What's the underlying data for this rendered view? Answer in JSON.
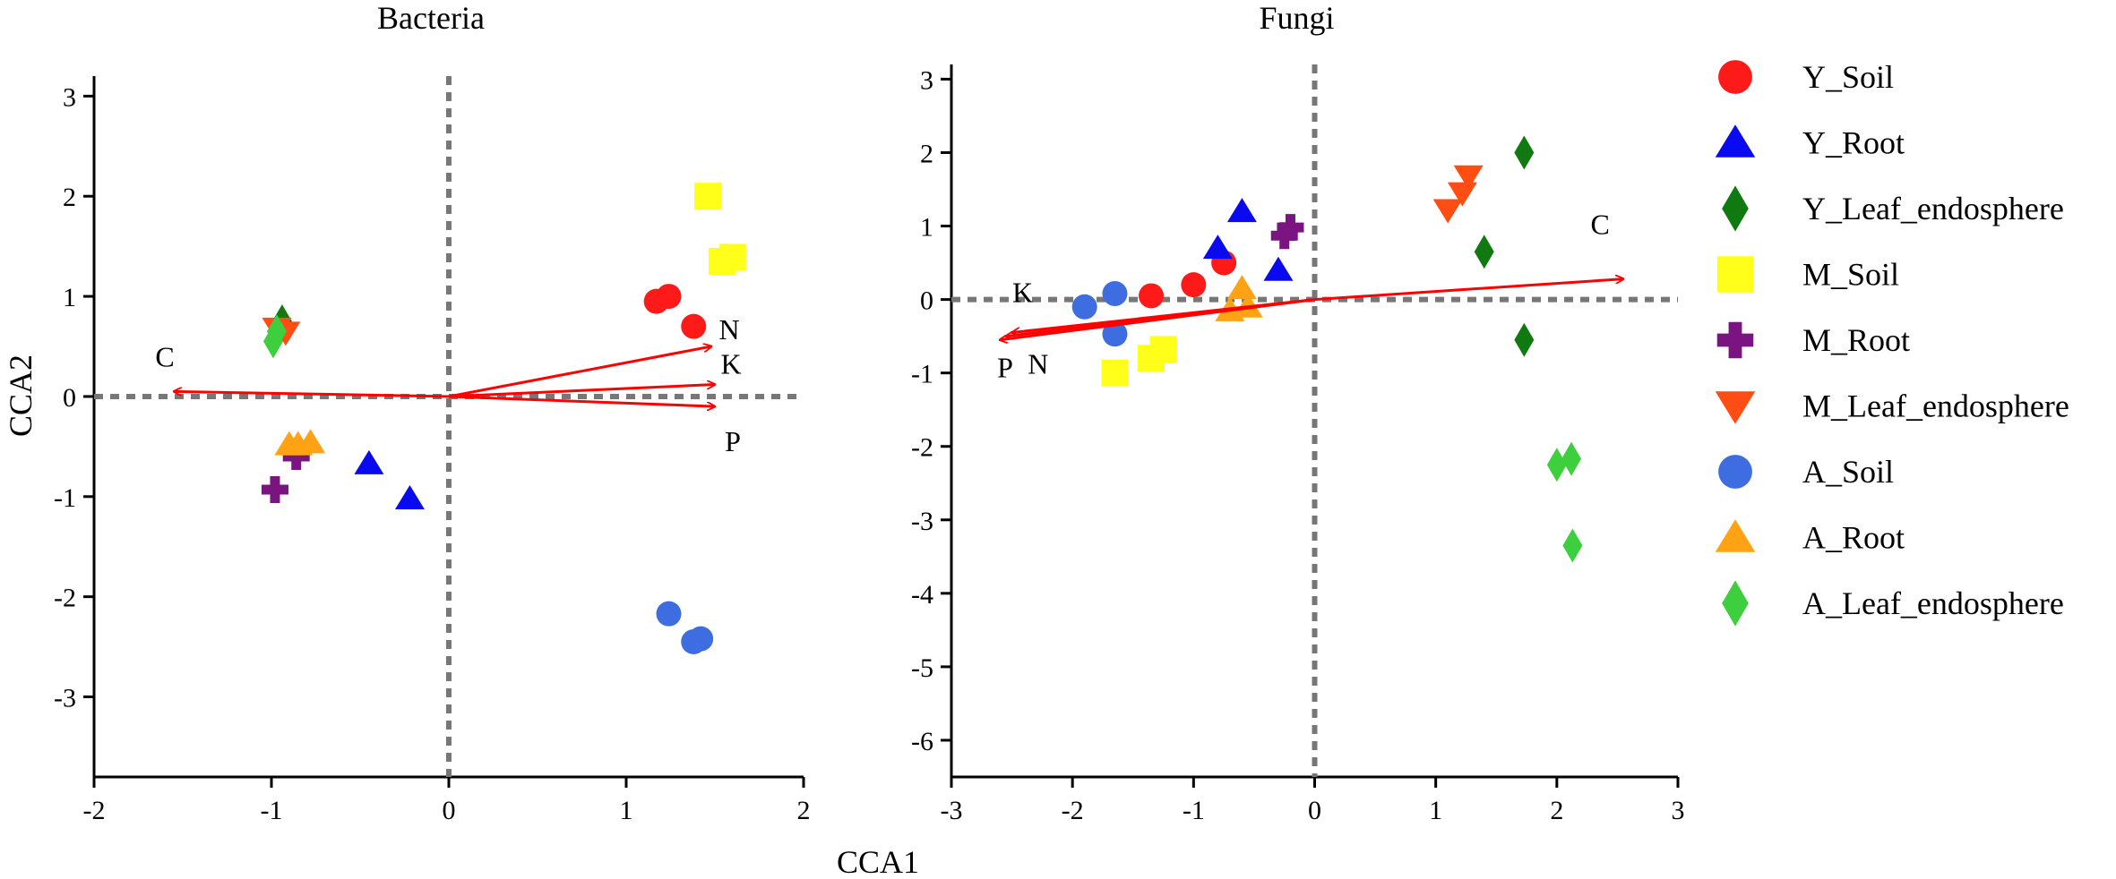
{
  "figure": {
    "shared_xlabel": "CCA1",
    "shared_ylabel": "CCA2"
  },
  "legend": [
    {
      "label": "Y_Soil",
      "marker": "circle",
      "color": "#ff1a1a"
    },
    {
      "label": "Y_Root",
      "marker": "triangle-up",
      "color": "#0a0af0"
    },
    {
      "label": "Y_Leaf_endosphere",
      "marker": "diamond",
      "color": "#107a10"
    },
    {
      "label": "M_Soil",
      "marker": "square",
      "color": "#ffff1a"
    },
    {
      "label": "M_Root",
      "marker": "plus",
      "color": "#7a1480"
    },
    {
      "label": "M_Leaf_endosphere",
      "marker": "triangle-down",
      "color": "#ff4d14"
    },
    {
      "label": "A_Soil",
      "marker": "circle",
      "color": "#3d6de0"
    },
    {
      "label": "A_Root",
      "marker": "triangle-up",
      "color": "#ffa214"
    },
    {
      "label": "A_Leaf_endosphere",
      "marker": "diamond",
      "color": "#3dcf3d"
    }
  ],
  "chart_data": [
    {
      "type": "scatter",
      "title": "Bacteria",
      "xlabel": "CCA1",
      "ylabel": "CCA2",
      "xlim": [
        -2,
        2
      ],
      "ylim": [
        -3.8,
        3.2
      ],
      "xticks": [
        -2,
        -1,
        0,
        1,
        2
      ],
      "yticks": [
        3,
        2,
        1,
        0,
        -1,
        -2,
        -3
      ],
      "vector_color": "#ff0000",
      "vectors": [
        {
          "label": "C",
          "x": -1.55,
          "y": 0.05
        },
        {
          "label": "N",
          "x": 1.48,
          "y": 0.5
        },
        {
          "label": "K",
          "x": 1.5,
          "y": 0.12
        },
        {
          "label": "P",
          "x": 1.5,
          "y": -0.1
        }
      ],
      "series": [
        {
          "name": "Y_Soil",
          "points": [
            [
              1.17,
              0.95
            ],
            [
              1.24,
              1.0
            ],
            [
              1.38,
              0.7
            ]
          ]
        },
        {
          "name": "Y_Root",
          "points": [
            [
              -0.45,
              -0.67
            ],
            [
              -0.22,
              -1.02
            ]
          ]
        },
        {
          "name": "Y_Leaf_endosphere",
          "points": [
            [
              -0.94,
              0.75
            ]
          ]
        },
        {
          "name": "M_Soil",
          "points": [
            [
              1.46,
              2.0
            ],
            [
              1.54,
              1.35
            ],
            [
              1.6,
              1.39
            ]
          ]
        },
        {
          "name": "M_Root",
          "points": [
            [
              -0.98,
              -0.93
            ],
            [
              -0.86,
              -0.6
            ]
          ]
        },
        {
          "name": "M_Leaf_endosphere",
          "points": [
            [
              -0.97,
              0.68
            ],
            [
              -0.92,
              0.64
            ]
          ]
        },
        {
          "name": "A_Soil",
          "points": [
            [
              1.24,
              -2.17
            ],
            [
              1.38,
              -2.45
            ],
            [
              1.42,
              -2.42
            ]
          ]
        },
        {
          "name": "A_Root",
          "points": [
            [
              -0.9,
              -0.48
            ],
            [
              -0.85,
              -0.48
            ],
            [
              -0.78,
              -0.46
            ]
          ]
        },
        {
          "name": "A_Leaf_endosphere",
          "points": [
            [
              -0.99,
              0.55
            ],
            [
              -0.97,
              0.65
            ]
          ]
        }
      ]
    },
    {
      "type": "scatter",
      "title": "Fungi",
      "xlabel": "CCA1",
      "ylabel": "",
      "xlim": [
        -3,
        3
      ],
      "ylim": [
        -6.5,
        3.2
      ],
      "xticks": [
        -3,
        -2,
        -1,
        0,
        1,
        2,
        3
      ],
      "yticks": [
        3,
        2,
        1,
        0,
        -1,
        -2,
        -3,
        -4,
        -5,
        -6
      ],
      "vector_color": "#ff0000",
      "vectors": [
        {
          "label": "C",
          "x": 2.55,
          "y": 0.28
        },
        {
          "label": "K",
          "x": -2.5,
          "y": -0.45
        },
        {
          "label": "N",
          "x": -2.55,
          "y": -0.5
        },
        {
          "label": "P",
          "x": -2.6,
          "y": -0.55
        }
      ],
      "series": [
        {
          "name": "Y_Soil",
          "points": [
            [
              -1.35,
              0.05
            ],
            [
              -1.0,
              0.2
            ],
            [
              -0.75,
              0.5
            ]
          ]
        },
        {
          "name": "Y_Root",
          "points": [
            [
              -0.6,
              1.2
            ],
            [
              -0.8,
              0.7
            ],
            [
              -0.3,
              0.4
            ]
          ]
        },
        {
          "name": "Y_Leaf_endosphere",
          "points": [
            [
              1.73,
              2.0
            ],
            [
              1.4,
              0.65
            ],
            [
              1.73,
              -0.55
            ]
          ]
        },
        {
          "name": "M_Soil",
          "points": [
            [
              -1.65,
              -1.0
            ],
            [
              -1.35,
              -0.8
            ],
            [
              -1.25,
              -0.68
            ]
          ]
        },
        {
          "name": "M_Root",
          "points": [
            [
              -0.2,
              0.98
            ],
            [
              -0.25,
              0.87
            ]
          ]
        },
        {
          "name": "M_Leaf_endosphere",
          "points": [
            [
              1.27,
              1.68
            ],
            [
              1.22,
              1.45
            ],
            [
              1.1,
              1.22
            ]
          ]
        },
        {
          "name": "A_Soil",
          "points": [
            [
              -1.9,
              -0.1
            ],
            [
              -1.65,
              0.08
            ],
            [
              -1.65,
              -0.47
            ]
          ]
        },
        {
          "name": "A_Root",
          "points": [
            [
              -0.6,
              0.15
            ],
            [
              -0.55,
              -0.1
            ],
            [
              -0.7,
              -0.15
            ]
          ]
        },
        {
          "name": "A_Leaf_endosphere",
          "points": [
            [
              2.0,
              -2.25
            ],
            [
              2.12,
              -2.17
            ],
            [
              2.13,
              -3.35
            ]
          ]
        }
      ]
    }
  ]
}
